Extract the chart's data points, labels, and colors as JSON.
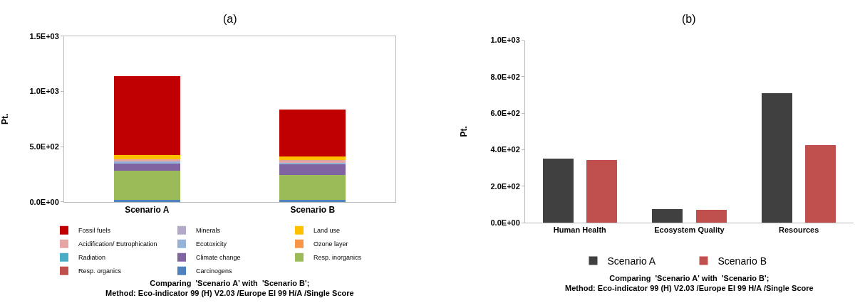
{
  "chart_data": [
    {
      "type": "bar",
      "title": "(a)",
      "ylabel": "Pt.",
      "stacked": true,
      "categories": [
        "Scenario A",
        "Scenario B"
      ],
      "series": [
        {
          "name": "Carcinogens",
          "color": "#4f81bd",
          "values": [
            22,
            20
          ]
        },
        {
          "name": "Resp. organics",
          "color": "#c0504d",
          "values": [
            null,
            null
          ]
        },
        {
          "name": "Resp. inorganics",
          "color": "#9bbb59",
          "values": [
            263,
            225
          ]
        },
        {
          "name": "Climate change",
          "color": "#8064a2",
          "values": [
            65,
            97
          ]
        },
        {
          "name": "Radiation",
          "color": "#4bacc6",
          "values": [
            null,
            null
          ]
        },
        {
          "name": "Ozone layer",
          "color": "#f79646",
          "values": [
            null,
            null
          ]
        },
        {
          "name": "Ecotoxicity",
          "color": "#95b3d7",
          "values": [
            15,
            14
          ]
        },
        {
          "name": "Acidification/ Eutrophication",
          "color": "#e6a5a5",
          "values": [
            20,
            20
          ]
        },
        {
          "name": "Land use",
          "color": "#ffc000",
          "values": [
            40,
            38
          ]
        },
        {
          "name": "Minerals",
          "color": "#b3a9c9",
          "values": [
            null,
            null
          ]
        },
        {
          "name": "Fossil fuels",
          "color": "#c00000",
          "values": [
            710,
            423
          ]
        }
      ],
      "ylim": [
        0,
        1500
      ],
      "yticks": [
        {
          "value": 0,
          "label": "0.0E+00"
        },
        {
          "value": 500,
          "label": "5.0E+02"
        },
        {
          "value": 1000,
          "label": "1.0E+03"
        },
        {
          "value": 1500,
          "label": "1.5E+03"
        }
      ],
      "grid": false,
      "legend": "bottom",
      "annotations": [
        "Comparing  'Scenario A' with  'Scenario B';\nMethod: Eco-indicator 99 (H) V2.03 /Europe EI 99 H/A /Single Score"
      ]
    },
    {
      "type": "bar",
      "title": "(b)",
      "ylabel": "Pt.",
      "categories": [
        "Human Health",
        "Ecosystem Quality",
        "Resources"
      ],
      "series": [
        {
          "name": "Scenario A",
          "color": "#404040",
          "values": [
            353,
            73,
            708
          ]
        },
        {
          "name": "Scenario B",
          "color": "#c0504d",
          "values": [
            344,
            70,
            425
          ]
        }
      ],
      "ylim": [
        0,
        1000
      ],
      "yticks": [
        {
          "value": 0,
          "label": "0.0E+00"
        },
        {
          "value": 200,
          "label": "2.0E+02"
        },
        {
          "value": 400,
          "label": "4.0E+02"
        },
        {
          "value": 600,
          "label": "6.0E+02"
        },
        {
          "value": 800,
          "label": "8.0E+02"
        },
        {
          "value": 1000,
          "label": "1.0E+03"
        }
      ],
      "grid": false,
      "legend": "bottom",
      "annotations": [
        "Comparing  'Scenario A' with  'Scenario B';\nMethod: Eco-indicator 99 (H) V2.03 /Europe EI 99 H/A /Single Score"
      ]
    }
  ]
}
